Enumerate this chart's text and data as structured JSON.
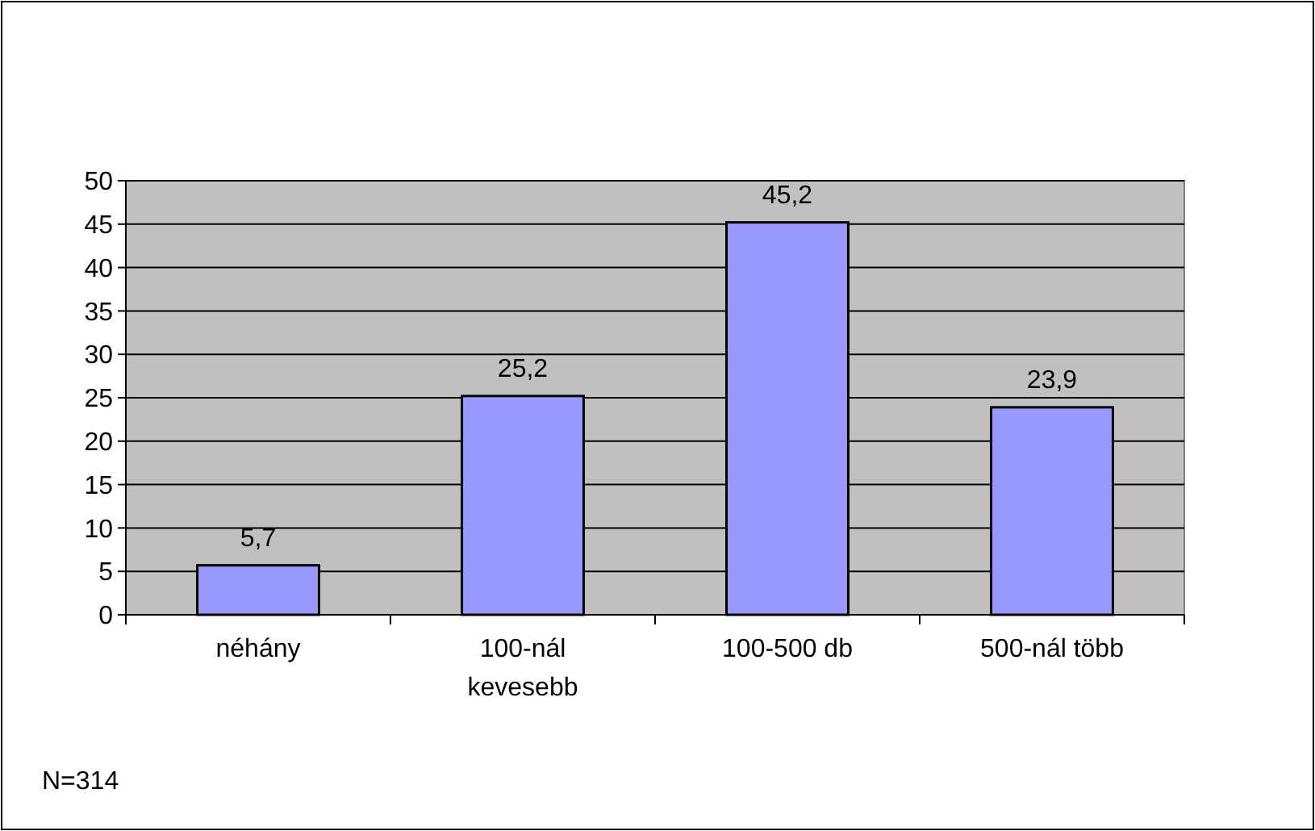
{
  "chart_data": {
    "type": "bar",
    "categories": [
      "néhány",
      "100-nál kevesebb",
      "100-500 db",
      "500-nál több"
    ],
    "values": [
      5.7,
      25.2,
      45.2,
      23.9
    ],
    "value_labels": [
      "5,7",
      "25,2",
      "45,2",
      "23,9"
    ],
    "color": "#9999ff",
    "ylim": [
      0,
      50
    ],
    "yticks": [
      0,
      5,
      10,
      15,
      20,
      25,
      30,
      35,
      40,
      45,
      50
    ],
    "grid": "y",
    "annotations": [
      "N=314"
    ]
  }
}
